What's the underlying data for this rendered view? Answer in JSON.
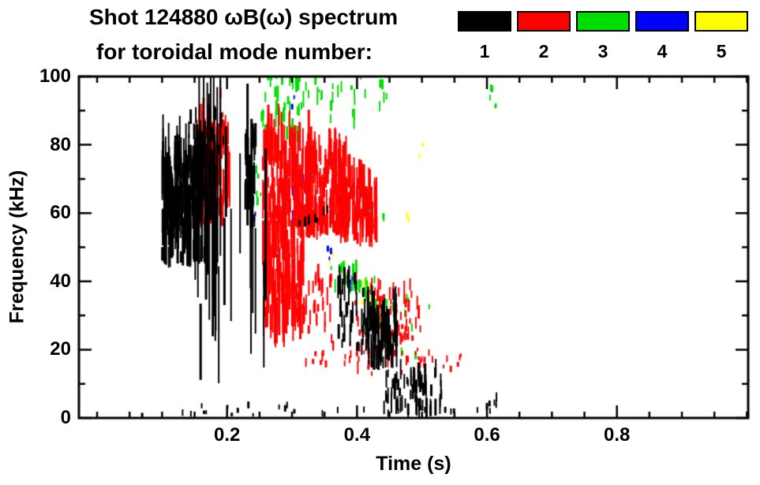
{
  "title": {
    "line1": "Shot 124880 ωB(ω) spectrum",
    "line2": "for toroidal mode number:"
  },
  "legend": {
    "modes": [
      {
        "label": "1",
        "color": "#000000"
      },
      {
        "label": "2",
        "color": "#ff0000"
      },
      {
        "label": "3",
        "color": "#00dd00"
      },
      {
        "label": "4",
        "color": "#0000ff"
      },
      {
        "label": "5",
        "color": "#ffff00"
      }
    ]
  },
  "chart_data": {
    "type": "scatter",
    "title": "Shot 124880 ωB(ω) spectrum for toroidal mode number 1-5",
    "xlabel": "Time (s)",
    "ylabel": "Frequency (kHz)",
    "xlim": [
      -0.028,
      1.002
    ],
    "ylim": [
      0,
      100
    ],
    "xticks": {
      "major": [
        0.2,
        0.4,
        0.6,
        0.8
      ],
      "labels": [
        "0.2",
        "0.4",
        "0.6",
        "0.8"
      ],
      "minor_step": 0.05
    },
    "yticks": {
      "major": [
        0,
        20,
        40,
        60,
        80,
        100
      ],
      "labels": [
        "0",
        "20",
        "40",
        "60",
        "80",
        "100"
      ],
      "minor_step": 10
    },
    "grid": false,
    "legend_position": "top-right",
    "series": [
      {
        "name": "mode 1",
        "color": "#000000",
        "clusters": [
          {
            "t": [
              0.1,
              0.17
            ],
            "f": [
              44,
              74
            ],
            "n": 220,
            "len": [
              3,
              16
            ]
          },
          {
            "t": [
              0.15,
              0.2
            ],
            "f": [
              10,
              68
            ],
            "n": 26,
            "len": [
              20,
              55
            ]
          },
          {
            "t": [
              0.205,
              0.262
            ],
            "f": [
              12,
              66
            ],
            "n": 10,
            "len": [
              25,
              50
            ]
          },
          {
            "t": [
              0.228,
              0.245
            ],
            "f": [
              55,
              80
            ],
            "n": 30,
            "len": [
              3,
              10
            ]
          },
          {
            "t": [
              0.14,
              0.2
            ],
            "f": [
              74,
              88
            ],
            "n": 18,
            "len": [
              2,
              5
            ]
          },
          {
            "t": [
              0.37,
              0.425
            ],
            "f": [
              18,
              40
            ],
            "n": 45,
            "len": [
              2,
              8
            ]
          },
          {
            "t": [
              0.415,
              0.462
            ],
            "f": [
              14,
              30
            ],
            "n": 90,
            "len": [
              3,
              10
            ]
          },
          {
            "t": [
              0.44,
              0.53
            ],
            "f": [
              0,
              12
            ],
            "n": 70,
            "len": [
              2,
              6
            ]
          },
          {
            "t": [
              0.03,
              0.62
            ],
            "f": [
              0,
              3
            ],
            "n": 28,
            "len": [
              1,
              2
            ]
          },
          {
            "t": [
              0.3,
              0.36
            ],
            "f": [
              55,
              62
            ],
            "n": 8,
            "len": [
              1,
              3
            ]
          },
          {
            "t": [
              0.6,
              0.615
            ],
            "f": [
              0,
              5
            ],
            "n": 4,
            "len": [
              1,
              3
            ]
          }
        ]
      },
      {
        "name": "mode 2",
        "color": "#ff0000",
        "clusters": [
          {
            "t": [
              0.148,
              0.205
            ],
            "f": [
              55,
              83
            ],
            "n": 130,
            "len": [
              3,
              12
            ]
          },
          {
            "t": [
              0.255,
              0.33
            ],
            "f": [
              52,
              80
            ],
            "n": 160,
            "len": [
              3,
              14
            ]
          },
          {
            "t": [
              0.32,
              0.385
            ],
            "f": [
              52,
              76
            ],
            "n": 140,
            "len": [
              3,
              12
            ]
          },
          {
            "t": [
              0.375,
              0.43
            ],
            "f": [
              50,
              68
            ],
            "n": 120,
            "len": [
              3,
              10
            ]
          },
          {
            "t": [
              0.255,
              0.32
            ],
            "f": [
              20,
              52
            ],
            "n": 150,
            "len": [
              4,
              14
            ]
          },
          {
            "t": [
              0.3,
              0.36
            ],
            "f": [
              24,
              40
            ],
            "n": 40,
            "len": [
              2,
              6
            ]
          },
          {
            "t": [
              0.395,
              0.5
            ],
            "f": [
              12,
              40
            ],
            "n": 60,
            "len": [
              1,
              4
            ]
          },
          {
            "t": [
              0.43,
              0.48
            ],
            "f": [
              22,
              38
            ],
            "n": 30,
            "len": [
              1,
              4
            ]
          },
          {
            "t": [
              0.32,
              0.42
            ],
            "f": [
              14,
              22
            ],
            "n": 20,
            "len": [
              1,
              3
            ]
          },
          {
            "t": [
              0.53,
              0.56
            ],
            "f": [
              12,
              18
            ],
            "n": 6,
            "len": [
              1,
              2
            ]
          },
          {
            "t": [
              0.18,
              0.2
            ],
            "f": [
              86,
              94
            ],
            "n": 5,
            "len": [
              1,
              3
            ]
          },
          {
            "t": [
              0.48,
              0.52
            ],
            "f": [
              14,
              20
            ],
            "n": 8,
            "len": [
              1,
              2
            ]
          }
        ]
      },
      {
        "name": "mode 3",
        "color": "#00dd00",
        "clusters": [
          {
            "t": [
              0.25,
              0.34
            ],
            "f": [
              80,
              100
            ],
            "n": 45,
            "len": [
              2,
              6
            ]
          },
          {
            "t": [
              0.34,
              0.45
            ],
            "f": [
              84,
              100
            ],
            "n": 25,
            "len": [
              1,
              4
            ]
          },
          {
            "t": [
              0.36,
              0.4
            ],
            "f": [
              36,
              44
            ],
            "n": 15,
            "len": [
              1,
              4
            ]
          },
          {
            "t": [
              0.39,
              0.43
            ],
            "f": [
              30,
              40
            ],
            "n": 15,
            "len": [
              1,
              4
            ]
          },
          {
            "t": [
              0.42,
              0.46
            ],
            "f": [
              26,
              34
            ],
            "n": 12,
            "len": [
              1,
              4
            ]
          },
          {
            "t": [
              0.16,
              0.19
            ],
            "f": [
              76,
              86
            ],
            "n": 10,
            "len": [
              1,
              3
            ]
          },
          {
            "t": [
              0.6,
              0.615
            ],
            "f": [
              90,
              98
            ],
            "n": 4,
            "len": [
              1,
              3
            ]
          },
          {
            "t": [
              0.45,
              0.52
            ],
            "f": [
              16,
              34
            ],
            "n": 10,
            "len": [
              1,
              3
            ]
          },
          {
            "t": [
              0.245,
              0.26
            ],
            "f": [
              60,
              72
            ],
            "n": 6,
            "len": [
              1,
              3
            ]
          },
          {
            "t": [
              0.42,
              0.45
            ],
            "f": [
              55,
              60
            ],
            "n": 5,
            "len": [
              1,
              2
            ]
          }
        ]
      },
      {
        "name": "mode 4",
        "color": "#0000ff",
        "clusters": [
          {
            "t": [
              0.295,
              0.33
            ],
            "f": [
              56,
              70
            ],
            "n": 18,
            "len": [
              2,
              5
            ]
          },
          {
            "t": [
              0.385,
              0.405
            ],
            "f": [
              36,
              45
            ],
            "n": 8,
            "len": [
              1,
              3
            ]
          },
          {
            "t": [
              0.23,
              0.245
            ],
            "f": [
              56,
              63
            ],
            "n": 4,
            "len": [
              1,
              3
            ]
          },
          {
            "t": [
              0.35,
              0.36
            ],
            "f": [
              46,
              50
            ],
            "n": 3,
            "len": [
              1,
              2
            ]
          },
          {
            "t": [
              0.425,
              0.435
            ],
            "f": [
              28,
              32
            ],
            "n": 3,
            "len": [
              1,
              2
            ]
          },
          {
            "t": [
              0.3,
              0.31
            ],
            "f": [
              90,
              94
            ],
            "n": 2,
            "len": [
              1,
              2
            ]
          }
        ]
      },
      {
        "name": "mode 5",
        "color": "#ffff00",
        "clusters": [
          {
            "t": [
              0.39,
              0.425
            ],
            "f": [
              33,
              44
            ],
            "n": 8,
            "len": [
              1,
              3
            ]
          },
          {
            "t": [
              0.33,
              0.34
            ],
            "f": [
              66,
              72
            ],
            "n": 3,
            "len": [
              1,
              2
            ]
          },
          {
            "t": [
              0.355,
              0.365
            ],
            "f": [
              44,
              48
            ],
            "n": 2,
            "len": [
              1,
              2
            ]
          },
          {
            "t": [
              0.47,
              0.48
            ],
            "f": [
              55,
              60
            ],
            "n": 2,
            "len": [
              1,
              2
            ]
          },
          {
            "t": [
              0.495,
              0.505
            ],
            "f": [
              76,
              80
            ],
            "n": 2,
            "len": [
              1,
              2
            ]
          }
        ]
      }
    ]
  }
}
